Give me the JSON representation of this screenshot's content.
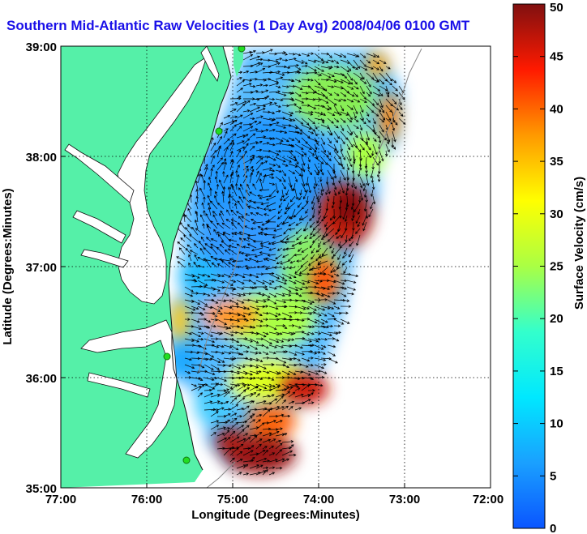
{
  "title": "Southern Mid-Atlantic Raw Velocities (1 Day Avg) 2008/04/06 0100 GMT",
  "map": {
    "x_axis_label": "Longitude (Degrees:Minutes)",
    "y_axis_label": "Latitude (Degrees:Minutes)",
    "lon_ticks": [
      "77:00",
      "76:00",
      "75:00",
      "74:00",
      "73:00",
      "72:00"
    ],
    "lat_ticks": [
      "39:00",
      "38:00",
      "37:00",
      "36:00",
      "35:00"
    ],
    "lon_range": [
      -77,
      -72
    ],
    "lat_range": [
      35,
      39
    ],
    "grid": true,
    "land_color": "#55f0a8",
    "coastline_color": "#111111",
    "station_color": "#22dd22"
  },
  "colorbar": {
    "label": "Surface Velocity (cm/s)",
    "ticks": [
      "50",
      "45",
      "40",
      "35",
      "30",
      "25",
      "20",
      "15",
      "10",
      "5",
      "0"
    ],
    "range": [
      0,
      50
    ],
    "colormap": "jet"
  }
}
